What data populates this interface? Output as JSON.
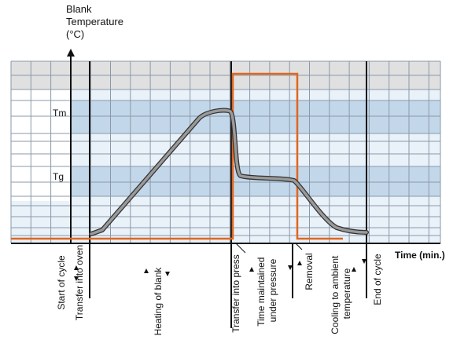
{
  "diagram": {
    "y_axis_title": [
      "Blank",
      "Temperature",
      "(°C)"
    ],
    "x_axis_title": "Time (min.)",
    "level_labels": {
      "upper": "Tm",
      "lower": "Tg"
    },
    "phases": [
      "Start of cycle",
      "Transfer into oven",
      "Heating of blank",
      "Transfer into press",
      [
        "Time maintained",
        "under pressure"
      ],
      "Removal",
      [
        "Cooling to ambient",
        "temperature"
      ],
      "End of cycle"
    ],
    "colors": {
      "grid_top": "#e0e0e0",
      "grid_light": "#e9f1f9",
      "band_blue": "#c3d7ea",
      "grid_line": "#8a99a8",
      "axis": "#111111",
      "press_signal": "#e0661f",
      "temperature_curve": "#9a9a9a"
    }
  }
}
